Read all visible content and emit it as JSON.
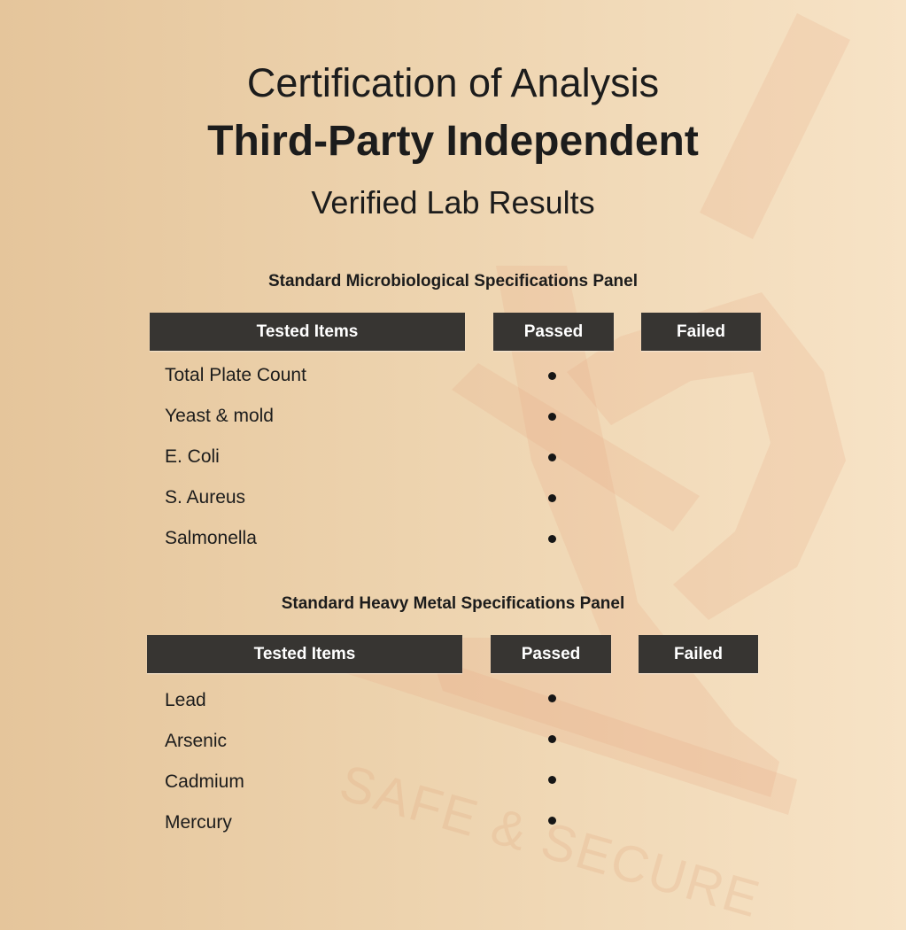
{
  "header": {
    "line1": "Certification of Analysis",
    "line2": "Third-Party Independent",
    "line3": "Verified Lab Results"
  },
  "watermark": {
    "text": "SAFE & SECURE",
    "icon": "microscope-icon"
  },
  "colors": {
    "header_bg": "#373532",
    "header_text": "#ffffff",
    "bg_left": "#e5c59b",
    "bg_right": "#f7e3c6"
  },
  "panels": [
    {
      "title": "Standard Microbiological Specifications Panel",
      "columns": [
        "Tested Items",
        "Passed",
        "Failed"
      ],
      "rows": [
        {
          "item": "Total Plate Count",
          "result": "passed"
        },
        {
          "item": "Yeast & mold",
          "result": "passed"
        },
        {
          "item": "E. Coli",
          "result": "passed"
        },
        {
          "item": "S. Aureus",
          "result": "passed"
        },
        {
          "item": "Salmonella",
          "result": "passed"
        }
      ]
    },
    {
      "title": "Standard Heavy Metal Specifications Panel",
      "columns": [
        "Tested Items",
        "Passed",
        "Failed"
      ],
      "rows": [
        {
          "item": "Lead",
          "result": "passed"
        },
        {
          "item": "Arsenic",
          "result": "passed"
        },
        {
          "item": "Cadmium",
          "result": "passed"
        },
        {
          "item": "Mercury",
          "result": "passed"
        }
      ]
    }
  ]
}
